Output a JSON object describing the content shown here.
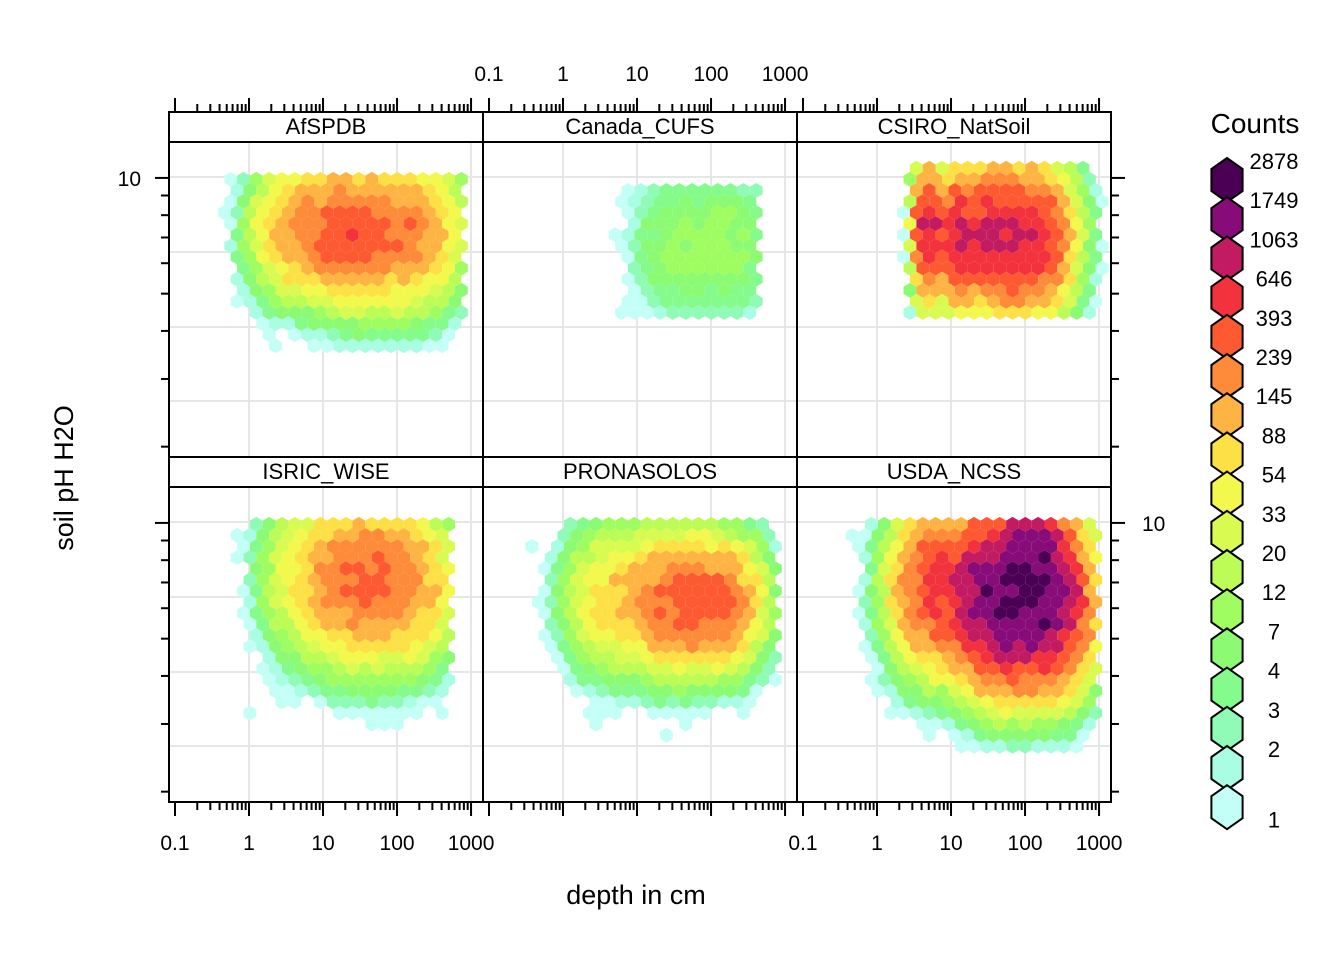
{
  "chart_data": {
    "type": "heatmap",
    "subtype": "hexbin-lattice",
    "xlabel": "depth in cm",
    "ylabel": "soil pH H2O",
    "x_scale": "log10",
    "y_scale": "log10",
    "x_ticks": [
      0.1,
      1,
      10,
      100,
      1000
    ],
    "x_tick_labels": [
      "0.1",
      "1",
      "10",
      "100",
      "1000"
    ],
    "y_ticks": [
      10
    ],
    "y_tick_labels": [
      "10"
    ],
    "y_minor_ticks": [
      9,
      8,
      7,
      6,
      5,
      4,
      3,
      2
    ],
    "xlim": [
      0.083,
      1450
    ],
    "ylim": [
      1.88,
      12.4
    ],
    "grid": true,
    "legend": {
      "title": "Counts",
      "position": "right",
      "breaks": [
        "2878",
        "1749",
        "1063",
        "646",
        "393",
        "239",
        "145",
        "88",
        "54",
        "33",
        "20",
        "12",
        "7",
        "4",
        "3",
        "2",
        "1"
      ],
      "colors": [
        "#4b0055",
        "#870b79",
        "#c31b62",
        "#f2333d",
        "#fd5a32",
        "#fd8b39",
        "#feb443",
        "#fde045",
        "#f2f84c",
        "#d9fb51",
        "#bdfc56",
        "#a0fd61",
        "#8cfb73",
        "#84fb8b",
        "#90fbb6",
        "#a8fde2",
        "#c3fff6"
      ]
    },
    "panels": [
      {
        "name": "AfSPDB",
        "row": "top",
        "col": 1,
        "clusters": [
          {
            "depth_cm": 60,
            "ph": 7.2,
            "sd_log_depth": 0.55,
            "sd_log_ph": 0.09,
            "peak_count": 400
          },
          {
            "depth_cm": 8,
            "ph": 7.3,
            "sd_log_depth": 0.45,
            "sd_log_ph": 0.08,
            "peak_count": 300
          }
        ],
        "depth_range_cm": [
          0.5,
          700
        ],
        "ph_range": [
          3.7,
          10.3
        ]
      },
      {
        "name": "Canada_CUFS",
        "row": "top",
        "col": 2,
        "clusters": [
          {
            "depth_cm": 80,
            "ph": 6.7,
            "sd_log_depth": 0.55,
            "sd_log_ph": 0.1,
            "peak_count": 15
          }
        ],
        "depth_range_cm": [
          0.1,
          400
        ],
        "ph_range": [
          4.3,
          9.6
        ]
      },
      {
        "name": "CSIRO_NatSoil",
        "row": "top",
        "col": 3,
        "clusters": [
          {
            "depth_cm": 60,
            "ph": 7.0,
            "sd_log_depth": 0.45,
            "sd_log_ph": 0.09,
            "peak_count": 1200
          },
          {
            "depth_cm": 5,
            "ph": 7.2,
            "sd_log_depth": 0.12,
            "sd_log_ph": 0.08,
            "peak_count": 1100
          },
          {
            "depth_cm": 12,
            "ph": 7.0,
            "sd_log_depth": 0.1,
            "sd_log_ph": 0.08,
            "peak_count": 900
          }
        ],
        "depth_range_cm": [
          0.15,
          1000
        ],
        "ph_range": [
          4.3,
          10.4
        ]
      },
      {
        "name": "ISRIC_WISE",
        "row": "bottom",
        "col": 1,
        "clusters": [
          {
            "depth_cm": 60,
            "ph": 7.0,
            "sd_log_depth": 0.5,
            "sd_log_ph": 0.1,
            "peak_count": 350
          },
          {
            "depth_cm": 15,
            "ph": 7.3,
            "sd_log_depth": 0.5,
            "sd_log_ph": 0.1,
            "peak_count": 150
          }
        ],
        "depth_range_cm": [
          0.5,
          500
        ],
        "ph_range": [
          2.7,
          10.3
        ]
      },
      {
        "name": "PRONASOLOS",
        "row": "bottom",
        "col": 2,
        "clusters": [
          {
            "depth_cm": 70,
            "ph": 6.2,
            "sd_log_depth": 0.45,
            "sd_log_ph": 0.08,
            "peak_count": 500
          },
          {
            "depth_cm": 10,
            "ph": 6.4,
            "sd_log_depth": 0.5,
            "sd_log_ph": 0.09,
            "peak_count": 150
          }
        ],
        "depth_range_cm": [
          0.4,
          700
        ],
        "ph_range": [
          2.5,
          10.0
        ]
      },
      {
        "name": "USDA_NCSS",
        "row": "bottom",
        "col": 3,
        "clusters": [
          {
            "depth_cm": 100,
            "ph": 6.2,
            "sd_log_depth": 0.45,
            "sd_log_ph": 0.1,
            "peak_count": 2878
          },
          {
            "depth_cm": 130,
            "ph": 8.5,
            "sd_log_depth": 0.25,
            "sd_log_ph": 0.06,
            "peak_count": 2000
          },
          {
            "depth_cm": 15,
            "ph": 6.8,
            "sd_log_depth": 0.5,
            "sd_log_ph": 0.1,
            "peak_count": 900
          }
        ],
        "depth_range_cm": [
          0.5,
          800
        ],
        "ph_range": [
          2.6,
          10.2
        ]
      }
    ]
  }
}
